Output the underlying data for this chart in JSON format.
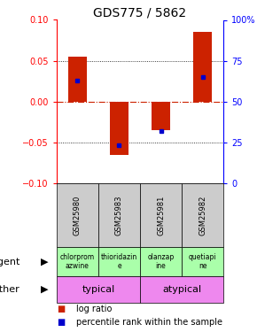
{
  "title": "GDS775 / 5862",
  "samples": [
    "GSM25980",
    "GSM25983",
    "GSM25981",
    "GSM25982"
  ],
  "log_ratios": [
    0.055,
    -0.065,
    -0.035,
    0.085
  ],
  "percentile_raw": [
    63,
    23,
    32,
    65
  ],
  "bar_color": "#cc2200",
  "dot_color": "#0000cc",
  "ylim": [
    -0.1,
    0.1
  ],
  "yticks_left": [
    -0.1,
    -0.05,
    0.0,
    0.05,
    0.1
  ],
  "yticks_right": [
    0,
    25,
    50,
    75,
    100
  ],
  "agent_labels": [
    "chlorprom\nazwine",
    "thioridazin\ne",
    "olanzap\nine",
    "quetiapi\nne"
  ],
  "other_bg_color": "#ee88ee",
  "agent_bg_color": "#aaffaa",
  "sample_bg_color": "#cccccc",
  "title_fontsize": 10,
  "tick_fontsize": 7,
  "label_fontsize": 8,
  "agent_fontsize": 5.5,
  "legend_fontsize": 7,
  "sample_fontsize": 6
}
